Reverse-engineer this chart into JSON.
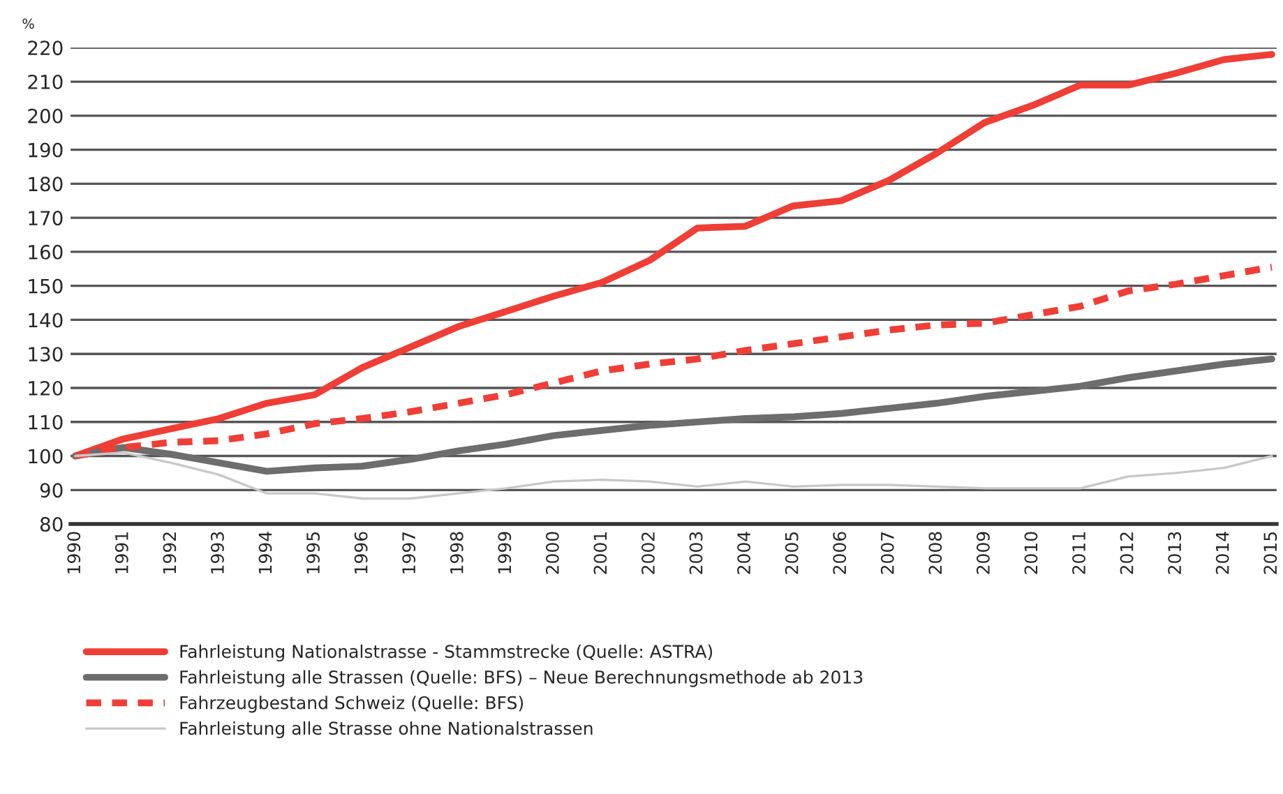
{
  "chart_data": {
    "type": "line",
    "ylabel": "%",
    "categories": [
      "1990",
      "1991",
      "1992",
      "1993",
      "1994",
      "1995",
      "1996",
      "1997",
      "1998",
      "1999",
      "2000",
      "2001",
      "2002",
      "2003",
      "2004",
      "2005",
      "2006",
      "2007",
      "2008",
      "2009",
      "2010",
      "2011",
      "2012",
      "2013",
      "2014",
      "2015"
    ],
    "series": [
      {
        "name": "Fahrleistung Nationalstrasse - Stammstrecke (Quelle: ASTRA)",
        "color": "#ef3e36",
        "line_style": "solid",
        "values": [
          100,
          105,
          108,
          111,
          115.5,
          118,
          126,
          132,
          138,
          142.5,
          147,
          151,
          157.5,
          167,
          167.5,
          173.5,
          175,
          181,
          189,
          198,
          203,
          209,
          209,
          212.5,
          216.5,
          218
        ]
      },
      {
        "name": "Fahrleistung alle Strassen (Quelle: BFS) – Neue Berechnungsmethode ab 2013",
        "color": "#6d6d6d",
        "line_style": "solid",
        "values": [
          100,
          102.5,
          100.5,
          98,
          95.5,
          96.5,
          97,
          99,
          101.5,
          103.5,
          106,
          107.5,
          109,
          110,
          111,
          111.5,
          112.5,
          114,
          115.5,
          117.5,
          119,
          120.5,
          123,
          125,
          127,
          128.5
        ]
      },
      {
        "name": "Fahrzeugbestand Schweiz (Quelle: BFS)",
        "color": "#ef3e36",
        "line_style": "dashed",
        "values": [
          100,
          102.5,
          104,
          104.5,
          106.5,
          109.5,
          111,
          113,
          115.5,
          118,
          121.5,
          125,
          127,
          128.5,
          131,
          133,
          135,
          137,
          138.5,
          139,
          141.5,
          144,
          148.5,
          150.5,
          153,
          155.5
        ]
      },
      {
        "name": "Fahrleistung alle Strasse ohne Nationalstrassen",
        "color": "#c8c8c8",
        "line_style": "solid",
        "values": [
          100,
          101,
          98,
          94.5,
          89,
          89,
          87.5,
          87.5,
          89,
          90.5,
          92.5,
          93,
          92.5,
          91,
          92.5,
          91,
          91.5,
          91.5,
          91,
          90.5,
          90.5,
          90.5,
          94,
          95,
          96.5,
          100
        ]
      }
    ],
    "ylim": [
      80,
      220
    ],
    "yticks": [
      80,
      90,
      100,
      110,
      120,
      130,
      140,
      150,
      160,
      170,
      180,
      190,
      200,
      210,
      220
    ],
    "grid": "y",
    "legend": "bottom"
  }
}
